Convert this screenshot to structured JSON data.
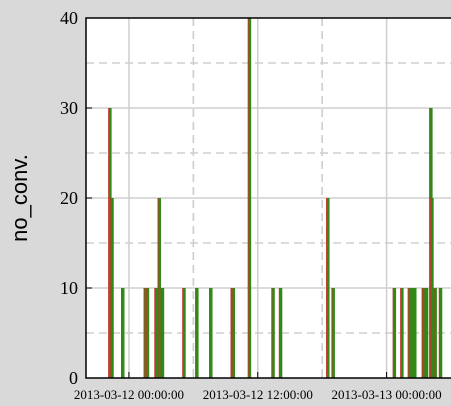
{
  "chart_data": {
    "type": "bar",
    "title": "",
    "ylabel": "no_conv.",
    "xlabel": "",
    "ylim": [
      0,
      40
    ],
    "yticks": [
      0,
      10,
      20,
      30,
      40
    ],
    "xlim": [
      "2013-03-11 20:00:00",
      "2013-03-13 06:00:00"
    ],
    "xticks": [
      "2013-03-12 00:00:00",
      "2013-03-12 12:00:00",
      "2013-03-13 00:00:00"
    ],
    "xtick_labels": [
      "2013-03-12 00:00:00",
      "2013-03-12 12:00:00",
      "2013-03-13 00:00:00"
    ],
    "grid": true,
    "colors": {
      "bar": "#2e8b18",
      "bar_edge": "#c0392b",
      "grid": "#cfcfcf",
      "background": "#ffffff",
      "figure": "#d9d9d9"
    },
    "series": [
      {
        "values": [
          {
            "x": "2013-03-11 22:12:00",
            "y": 30
          },
          {
            "x": "2013-03-11 22:24:00",
            "y": 20
          },
          {
            "x": "2013-03-11 23:24:00",
            "y": 10
          },
          {
            "x": "2013-03-12 01:30:00",
            "y": 10
          },
          {
            "x": "2013-03-12 01:42:00",
            "y": 10
          },
          {
            "x": "2013-03-12 02:30:00",
            "y": 10
          },
          {
            "x": "2013-03-12 02:48:00",
            "y": 20
          },
          {
            "x": "2013-03-12 03:06:00",
            "y": 10
          },
          {
            "x": "2013-03-12 05:06:00",
            "y": 10
          },
          {
            "x": "2013-03-12 06:18:00",
            "y": 10
          },
          {
            "x": "2013-03-12 07:36:00",
            "y": 10
          },
          {
            "x": "2013-03-12 09:36:00",
            "y": 10
          },
          {
            "x": "2013-03-12 09:42:00",
            "y": 10
          },
          {
            "x": "2013-03-12 11:12:00",
            "y": 40
          },
          {
            "x": "2013-03-12 13:24:00",
            "y": 10
          },
          {
            "x": "2013-03-12 14:06:00",
            "y": 10
          },
          {
            "x": "2013-03-12 18:30:00",
            "y": 20
          },
          {
            "x": "2013-03-12 19:00:00",
            "y": 10
          },
          {
            "x": "2013-03-13 00:42:00",
            "y": 10
          },
          {
            "x": "2013-03-13 01:24:00",
            "y": 10
          },
          {
            "x": "2013-03-13 02:06:00",
            "y": 10
          },
          {
            "x": "2013-03-13 02:24:00",
            "y": 10
          },
          {
            "x": "2013-03-13 02:36:00",
            "y": 10
          },
          {
            "x": "2013-03-13 03:24:00",
            "y": 10
          },
          {
            "x": "2013-03-13 03:30:00",
            "y": 10
          },
          {
            "x": "2013-03-13 03:42:00",
            "y": 10
          },
          {
            "x": "2013-03-13 04:06:00",
            "y": 30
          },
          {
            "x": "2013-03-13 04:12:00",
            "y": 20
          },
          {
            "x": "2013-03-13 04:30:00",
            "y": 10
          },
          {
            "x": "2013-03-13 05:00:00",
            "y": 10
          }
        ]
      }
    ]
  }
}
